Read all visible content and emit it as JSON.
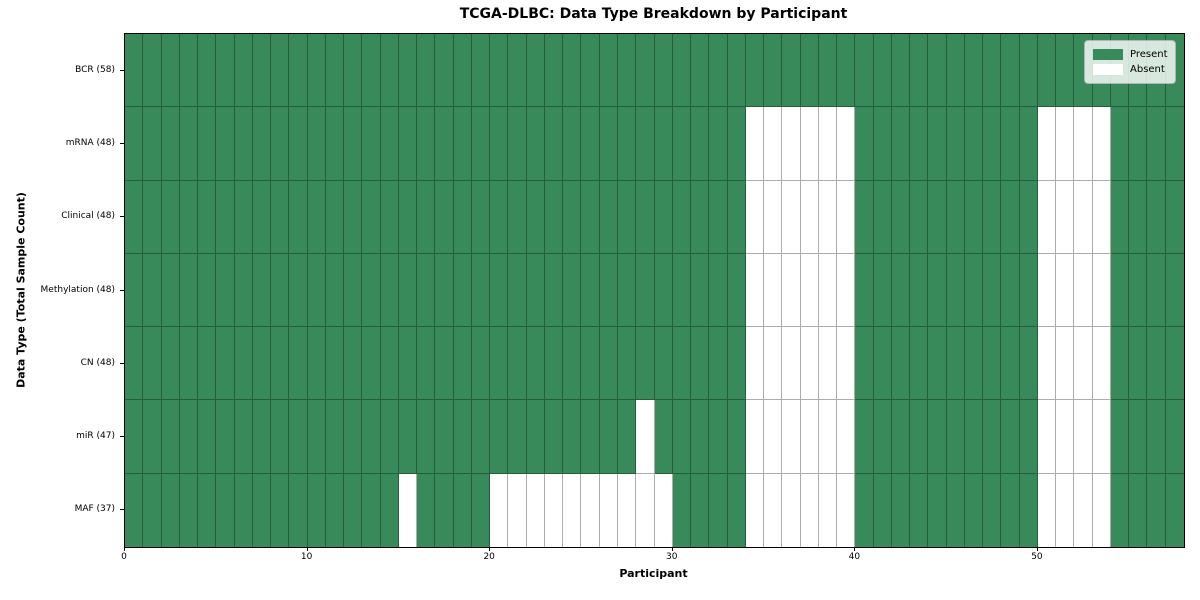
{
  "figure": {
    "title": "TCGA-DLBC: Data Type Breakdown by Participant",
    "xlabel": "Participant",
    "ylabel": "Data Type (Total Sample Count)"
  },
  "legend": {
    "present_label": "Present",
    "absent_label": "Absent"
  },
  "colors": {
    "present": "#388a5a",
    "absent": "#ffffff",
    "grid_line": "rgba(0,0,0,0.32)",
    "axis_line": "#000000",
    "legend_bg": "rgba(255,255,255,0.8)",
    "legend_border": "#b4b4b4",
    "text": "#000000"
  },
  "chart_data": {
    "type": "heatmap",
    "title": "TCGA-DLBC: Data Type Breakdown by Participant",
    "xlabel": "Participant",
    "ylabel": "Data Type (Total Sample Count)",
    "x_range": [
      0,
      58
    ],
    "x_ticks": [
      0,
      10,
      20,
      30,
      40,
      50
    ],
    "n_participants": 58,
    "value_encoding": {
      "1": "Present",
      "0": "Absent"
    },
    "legend_entries": [
      "Present",
      "Absent"
    ],
    "legend_position": "upper right",
    "grid": true,
    "rows": [
      {
        "label": "BCR (58)",
        "total_sample_count": 58,
        "absent_participants": []
      },
      {
        "label": "mRNA (48)",
        "total_sample_count": 48,
        "absent_participants": [
          34,
          35,
          36,
          37,
          38,
          39,
          50,
          51,
          52,
          53
        ]
      },
      {
        "label": "Clinical (48)",
        "total_sample_count": 48,
        "absent_participants": [
          34,
          35,
          36,
          37,
          38,
          39,
          50,
          51,
          52,
          53
        ]
      },
      {
        "label": "Methylation (48)",
        "total_sample_count": 48,
        "absent_participants": [
          34,
          35,
          36,
          37,
          38,
          39,
          50,
          51,
          52,
          53
        ]
      },
      {
        "label": "CN (48)",
        "total_sample_count": 48,
        "absent_participants": [
          34,
          35,
          36,
          37,
          38,
          39,
          50,
          51,
          52,
          53
        ]
      },
      {
        "label": "miR (47)",
        "total_sample_count": 47,
        "absent_participants": [
          28,
          34,
          35,
          36,
          37,
          38,
          39,
          50,
          51,
          52,
          53
        ]
      },
      {
        "label": "MAF (37)",
        "total_sample_count": 37,
        "absent_participants": [
          15,
          20,
          21,
          22,
          23,
          24,
          25,
          26,
          27,
          28,
          29,
          34,
          35,
          36,
          37,
          38,
          39,
          50,
          51,
          52,
          53
        ]
      }
    ]
  }
}
